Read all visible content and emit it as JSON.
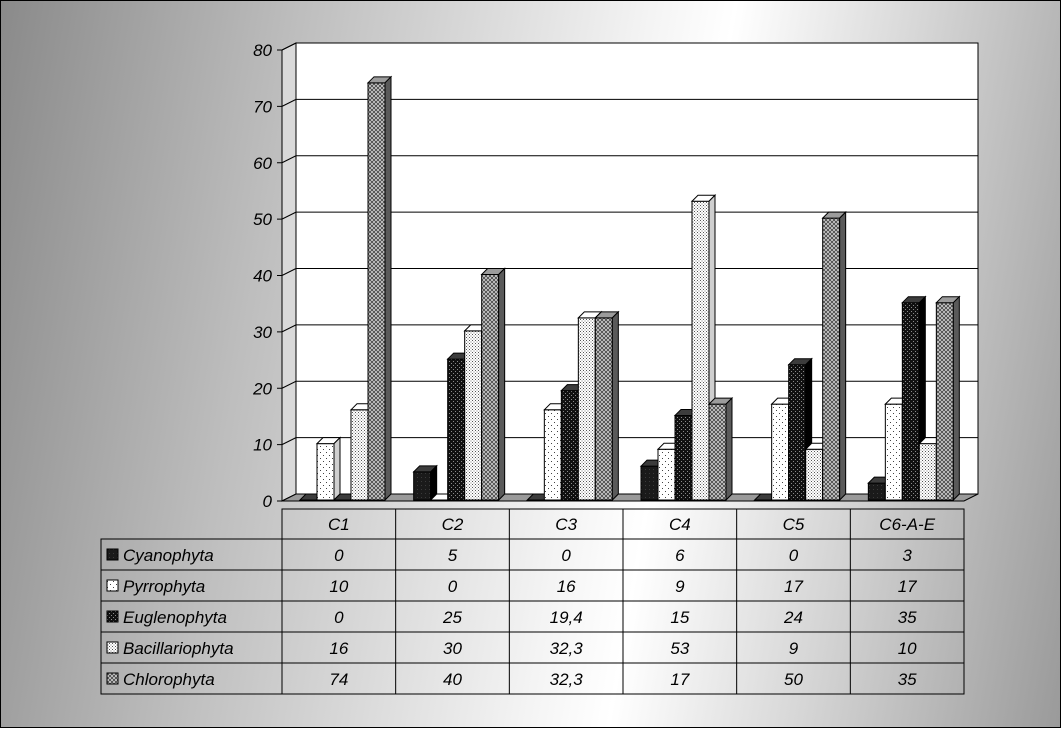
{
  "chart_data": {
    "type": "bar",
    "title": "",
    "xlabel": "",
    "ylabel": "",
    "ylim": [
      0,
      80
    ],
    "yticks": [
      0,
      10,
      20,
      30,
      40,
      50,
      60,
      70,
      80
    ],
    "grid": true,
    "legend": "data-table-left",
    "categories": [
      "C1",
      "C2",
      "C3",
      "C4",
      "C5",
      "C6-A-E"
    ],
    "series": [
      {
        "name": "Cyanophyta",
        "values": [
          0,
          5,
          0,
          6,
          0,
          3
        ],
        "labels": [
          "0",
          "5",
          "0",
          "6",
          "0",
          "3"
        ],
        "color": "#1a1a1a",
        "pattern": "solid-dark"
      },
      {
        "name": "Pyrrophyta",
        "values": [
          10,
          0,
          16,
          9,
          17,
          17
        ],
        "labels": [
          "10",
          "0",
          "16",
          "9",
          "17",
          "17"
        ],
        "color": "#ffffff",
        "pattern": "sparse-dots"
      },
      {
        "name": "Euglenophyta",
        "values": [
          0,
          25,
          19.4,
          15,
          24,
          35
        ],
        "labels": [
          "0",
          "25",
          "19,4",
          "15",
          "24",
          "35"
        ],
        "color": "#1a1a1a",
        "pattern": "dark-checker"
      },
      {
        "name": "Bacillariophyta",
        "values": [
          16,
          30,
          32.3,
          53,
          9,
          10
        ],
        "labels": [
          "16",
          "30",
          "32,3",
          "53",
          "9",
          "10"
        ],
        "color": "#ffffff",
        "pattern": "dense-dots"
      },
      {
        "name": "Chlorophyta",
        "values": [
          74,
          40,
          32.3,
          17,
          50,
          35
        ],
        "labels": [
          "74",
          "40",
          "32,3",
          "17",
          "50",
          "35"
        ],
        "color": "#808080",
        "pattern": "grey-checker"
      }
    ]
  }
}
